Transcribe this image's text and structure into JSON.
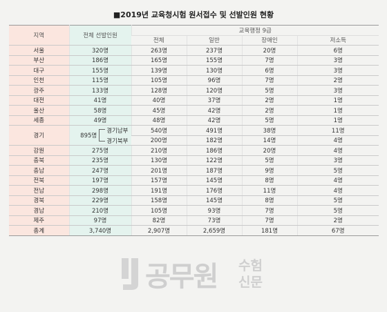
{
  "header": {
    "title": "■2019년 교육청시험 원서접수 및 선발인원 현황"
  },
  "table": {
    "columns": {
      "region": "지역",
      "total": "전체 선발인원",
      "group": "교육행정 9급",
      "sub": [
        "전체",
        "일반",
        "장애인",
        "저소득"
      ]
    },
    "rows": [
      {
        "region": "서울",
        "total": "320명",
        "cells": [
          "263명",
          "237명",
          "20명",
          "6명"
        ]
      },
      {
        "region": "부산",
        "total": "186명",
        "cells": [
          "165명",
          "155명",
          "7명",
          "3명"
        ]
      },
      {
        "region": "대구",
        "total": "155명",
        "cells": [
          "139명",
          "130명",
          "6명",
          "3명"
        ]
      },
      {
        "region": "인천",
        "total": "115명",
        "cells": [
          "105명",
          "96명",
          "7명",
          "2명"
        ]
      },
      {
        "region": "광주",
        "total": "133명",
        "cells": [
          "128명",
          "120명",
          "5명",
          "3명"
        ]
      },
      {
        "region": "대전",
        "total": "41명",
        "cells": [
          "40명",
          "37명",
          "2명",
          "1명"
        ]
      },
      {
        "region": "울산",
        "total": "58명",
        "cells": [
          "45명",
          "42명",
          "2명",
          "1명"
        ]
      },
      {
        "region": "세종",
        "total": "49명",
        "cells": [
          "48명",
          "42명",
          "5명",
          "1명"
        ]
      },
      {
        "region": "경기",
        "total": "895명",
        "subrows": [
          {
            "name": "경기남부",
            "cells": [
              "540명",
              "491명",
              "38명",
              "11명"
            ]
          },
          {
            "name": "경기북부",
            "cells": [
              "200명",
              "182명",
              "14명",
              "4명"
            ]
          }
        ]
      },
      {
        "region": "강원",
        "total": "275명",
        "cells": [
          "210명",
          "186명",
          "20명",
          "4명"
        ]
      },
      {
        "region": "충북",
        "total": "235명",
        "cells": [
          "130명",
          "122명",
          "5명",
          "3명"
        ]
      },
      {
        "region": "충남",
        "total": "247명",
        "cells": [
          "201명",
          "187명",
          "9명",
          "5명"
        ]
      },
      {
        "region": "전북",
        "total": "197명",
        "cells": [
          "157명",
          "145명",
          "8명",
          "4명"
        ]
      },
      {
        "region": "전남",
        "total": "298명",
        "cells": [
          "191명",
          "176명",
          "11명",
          "4명"
        ]
      },
      {
        "region": "경북",
        "total": "229명",
        "cells": [
          "158명",
          "145명",
          "8명",
          "5명"
        ]
      },
      {
        "region": "경남",
        "total": "210명",
        "cells": [
          "105명",
          "93명",
          "7명",
          "5명"
        ]
      },
      {
        "region": "제주",
        "total": "97명",
        "cells": [
          "82명",
          "73명",
          "7명",
          "2명"
        ]
      }
    ],
    "sum": {
      "region": "총계",
      "total": "3,740명",
      "cells": [
        "2,907명",
        "2,659명",
        "181명",
        "67명"
      ]
    }
  },
  "watermark": {
    "main": "공무원",
    "top": "수험",
    "bottom": "신문"
  }
}
